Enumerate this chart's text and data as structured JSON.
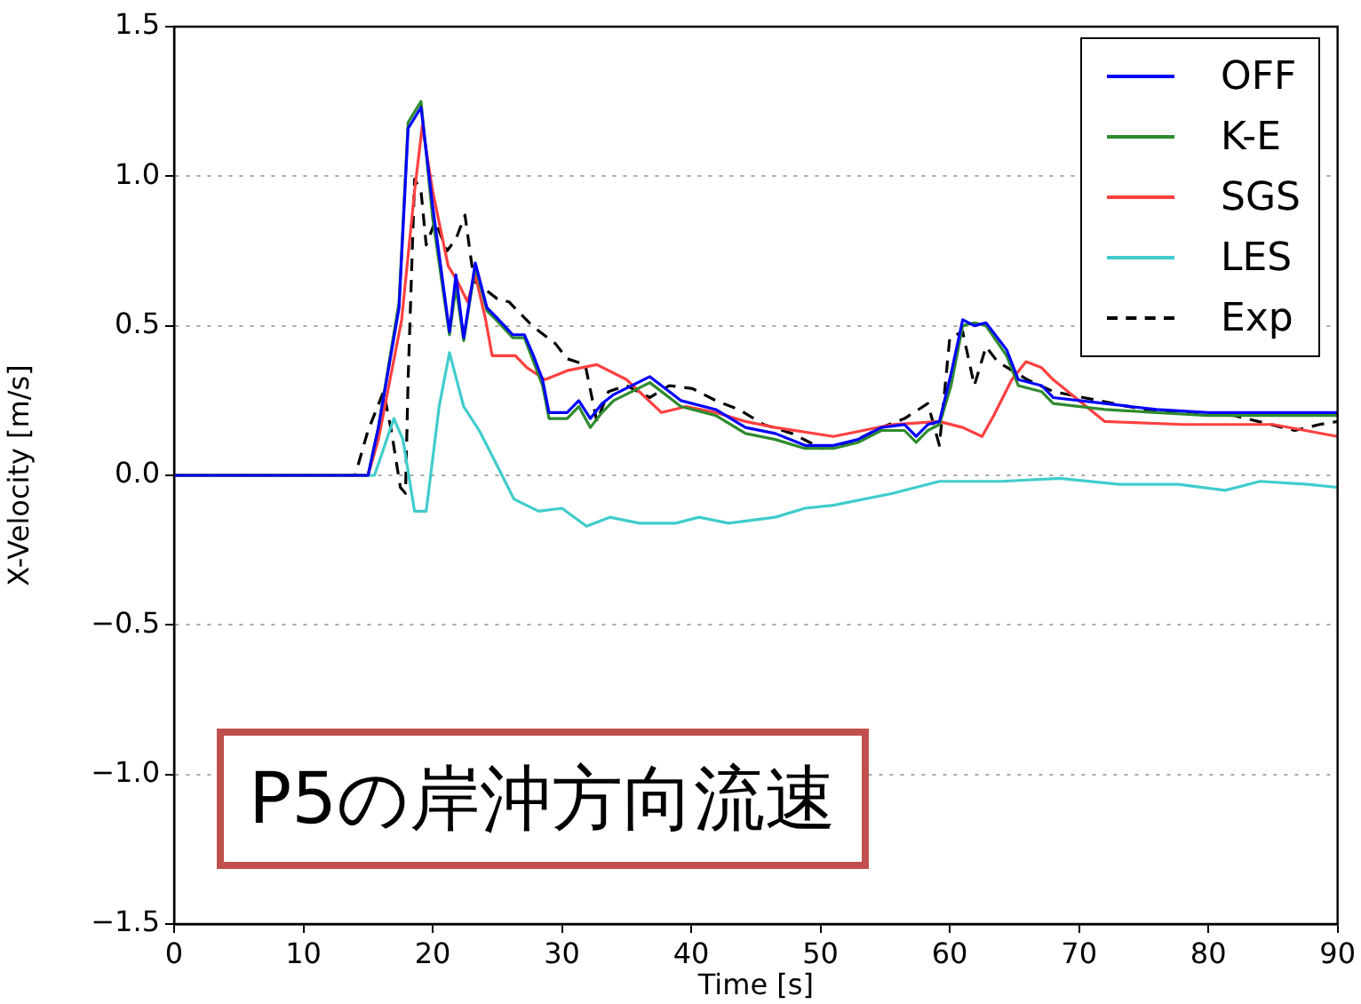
{
  "chart_data": {
    "type": "line",
    "xlabel": "Time [s]",
    "ylabel": "X-Velocity [m/s]",
    "xlim": [
      0,
      90
    ],
    "xticks": [
      0,
      10,
      20,
      30,
      40,
      50,
      60,
      70,
      80,
      90
    ],
    "ylim": [
      -1.5,
      1.5
    ],
    "yticks": [
      {
        "value": -1.5,
        "label": "−1.5"
      },
      {
        "value": -1.0,
        "label": "−1.0"
      },
      {
        "value": -0.5,
        "label": "−0.5"
      },
      {
        "value": 0,
        "label": "0.0"
      },
      {
        "value": 0.5,
        "label": "0.5"
      },
      {
        "value": 1.0,
        "label": "1.0"
      },
      {
        "value": 1.5,
        "label": "1.5"
      }
    ],
    "grid": "y",
    "legend": "top right",
    "annotations": [
      "P5の岸沖方向流速"
    ],
    "series": [
      {
        "name": "OFF",
        "color": "#0000ff",
        "x": [
          0,
          15,
          15.8,
          17.4,
          18.1,
          19.1,
          20,
          21.3,
          21.8,
          22.4,
          23.3,
          24.2,
          24.9,
          26.2,
          27.1,
          27.8,
          28.5,
          29,
          30.4,
          31.3,
          32.2,
          33.1,
          34,
          36.8,
          38.6,
          39.2,
          41.9,
          44.2,
          46.5,
          48.8,
          51,
          52.9,
          54.7,
          56.5,
          57.4,
          58.3,
          59.2,
          60.1,
          61,
          61.9,
          62.8,
          64.4,
          65.3,
          67.1,
          68,
          72,
          76,
          80,
          84,
          88,
          90
        ],
        "values": [
          0,
          0,
          0.16,
          0.56,
          1.16,
          1.23,
          0.9,
          0.48,
          0.67,
          0.46,
          0.71,
          0.56,
          0.53,
          0.47,
          0.47,
          0.4,
          0.32,
          0.21,
          0.21,
          0.25,
          0.19,
          0.24,
          0.27,
          0.33,
          0.27,
          0.25,
          0.22,
          0.16,
          0.14,
          0.1,
          0.1,
          0.12,
          0.16,
          0.17,
          0.13,
          0.17,
          0.18,
          0.34,
          0.52,
          0.5,
          0.51,
          0.42,
          0.32,
          0.3,
          0.26,
          0.24,
          0.22,
          0.21,
          0.21,
          0.21,
          0.21
        ]
      },
      {
        "name": "K-E",
        "color": "#2e8b2e",
        "x": [
          0,
          15,
          15.8,
          17.4,
          18.1,
          19.1,
          20,
          21.3,
          21.8,
          22.4,
          23.3,
          24.2,
          24.9,
          26.2,
          27.1,
          27.8,
          28.5,
          29,
          30.4,
          31.3,
          32.2,
          33.1,
          34,
          36.8,
          38.6,
          39.2,
          41.9,
          44.2,
          46.5,
          48.8,
          51,
          52.9,
          54.7,
          56.5,
          57.4,
          58.3,
          59.2,
          60.1,
          61,
          61.9,
          62.8,
          64.4,
          65.3,
          67.1,
          68,
          72,
          76,
          80,
          84,
          88,
          90
        ],
        "values": [
          0,
          0,
          0.16,
          0.58,
          1.18,
          1.25,
          0.86,
          0.47,
          0.63,
          0.45,
          0.7,
          0.55,
          0.52,
          0.46,
          0.46,
          0.38,
          0.3,
          0.19,
          0.19,
          0.23,
          0.16,
          0.21,
          0.25,
          0.31,
          0.25,
          0.23,
          0.2,
          0.14,
          0.12,
          0.09,
          0.09,
          0.11,
          0.15,
          0.15,
          0.11,
          0.15,
          0.17,
          0.3,
          0.5,
          0.51,
          0.5,
          0.4,
          0.3,
          0.28,
          0.24,
          0.22,
          0.21,
          0.2,
          0.2,
          0.2,
          0.2
        ]
      },
      {
        "name": "SGS",
        "color": "#ff4040",
        "x": [
          0,
          15,
          15.8,
          17.6,
          18.6,
          19.2,
          20,
          21.2,
          21.9,
          22.7,
          23.3,
          24.1,
          24.6,
          26.4,
          27.3,
          28.7,
          30.4,
          32.7,
          35,
          37.7,
          39.6,
          41.9,
          44.2,
          46.5,
          51,
          55.6,
          59.2,
          61,
          62.5,
          63.4,
          64.8,
          65.9,
          67.1,
          68,
          72,
          78,
          85,
          90
        ],
        "values": [
          0,
          0,
          0.12,
          0.52,
          0.95,
          1.17,
          0.95,
          0.7,
          0.65,
          0.58,
          0.67,
          0.52,
          0.4,
          0.4,
          0.36,
          0.32,
          0.35,
          0.37,
          0.32,
          0.21,
          0.23,
          0.21,
          0.18,
          0.16,
          0.13,
          0.17,
          0.18,
          0.16,
          0.13,
          0.2,
          0.32,
          0.38,
          0.36,
          0.32,
          0.18,
          0.17,
          0.17,
          0.13
        ]
      },
      {
        "name": "LES",
        "color": "#40cccc",
        "x": [
          0,
          15.5,
          17,
          17.7,
          18.6,
          19.5,
          20.5,
          21.3,
          22.4,
          23.6,
          24.9,
          26.3,
          28.2,
          30,
          31.9,
          33.7,
          36,
          38.8,
          40.6,
          42.9,
          46.5,
          48.8,
          51,
          55.6,
          59.2,
          64,
          68.5,
          73.1,
          77.7,
          81.3,
          84,
          87.7,
          90
        ],
        "values": [
          0,
          0,
          0.19,
          0.12,
          -0.12,
          -0.12,
          0.23,
          0.41,
          0.23,
          0.15,
          0.04,
          -0.08,
          -0.12,
          -0.11,
          -0.17,
          -0.14,
          -0.16,
          -0.16,
          -0.14,
          -0.16,
          -0.14,
          -0.11,
          -0.1,
          -0.06,
          -0.02,
          -0.02,
          -0.01,
          -0.03,
          -0.03,
          -0.05,
          -0.02,
          -0.03,
          -0.04
        ]
      },
      {
        "name": "Exp",
        "color": "#000000",
        "line_style": "dashed",
        "x": [
          0,
          14,
          15,
          16.2,
          16.8,
          17.5,
          17.9,
          18.1,
          18.6,
          19.1,
          19.5,
          20.2,
          21.1,
          21.8,
          22.5,
          23.2,
          24.1,
          25,
          25.9,
          27.7,
          29.5,
          30.4,
          31.8,
          32.7,
          33.6,
          35,
          36.8,
          38.3,
          40.1,
          41.9,
          43.7,
          45.6,
          47.8,
          50.1,
          52.4,
          54.7,
          56.5,
          58.3,
          59.2,
          60,
          61,
          61.9,
          62.8,
          63.7,
          66,
          68,
          75,
          82,
          86.7,
          88.6,
          90
        ],
        "values": [
          0,
          0,
          0.15,
          0.28,
          0.15,
          -0.04,
          -0.06,
          0.32,
          0.99,
          0.95,
          0.77,
          0.85,
          0.75,
          0.79,
          0.87,
          0.65,
          0.62,
          0.59,
          0.58,
          0.5,
          0.44,
          0.39,
          0.37,
          0.18,
          0.28,
          0.3,
          0.26,
          0.3,
          0.29,
          0.25,
          0.22,
          0.17,
          0.14,
          0.09,
          0.11,
          0.16,
          0.19,
          0.24,
          0.1,
          0.46,
          0.48,
          0.3,
          0.43,
          0.38,
          0.32,
          0.28,
          0.22,
          0.2,
          0.15,
          0.17,
          0.18
        ]
      }
    ]
  }
}
